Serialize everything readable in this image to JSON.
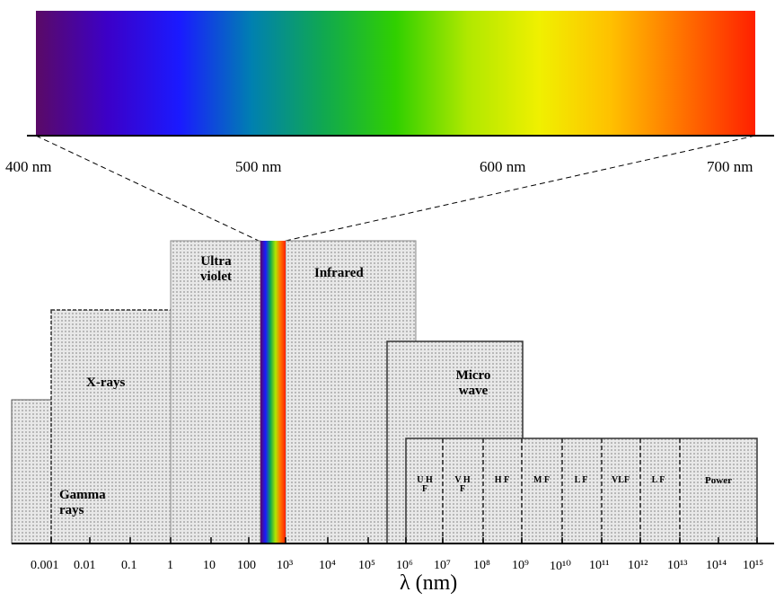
{
  "spectrum": {
    "colors": [
      "#5a0a66",
      "#3c00c8",
      "#1a1aff",
      "#0080b0",
      "#10a850",
      "#30d000",
      "#b0e800",
      "#f0f000",
      "#ffc000",
      "#ff7000",
      "#ff2000"
    ],
    "labels": [
      "400 nm",
      "500 nm",
      "600 nm",
      "700 nm"
    ]
  },
  "regions": {
    "ultraviolet": "Ultra violet",
    "infrared": "Infrared",
    "xrays": "X-rays",
    "gamma": "Gamma rays",
    "microwave": "Micro wave"
  },
  "radio_bands": [
    "U H F",
    "V H F",
    "H F",
    "M F",
    "L F",
    "VLF",
    "L F",
    "Power"
  ],
  "x_axis": {
    "tick_labels": [
      "0.001",
      "0.01",
      "0.1",
      "1",
      "10",
      "100",
      "10³",
      "10⁴",
      "10⁵",
      "10⁶",
      "10⁷",
      "10⁸",
      "10⁹",
      "10¹⁰",
      "10¹¹",
      "10¹²",
      "10¹³",
      "10¹⁴",
      "10¹⁵"
    ],
    "title": "λ (nm)"
  },
  "colors": {
    "region_fill": "#dcdcdc",
    "line": "#000000"
  }
}
